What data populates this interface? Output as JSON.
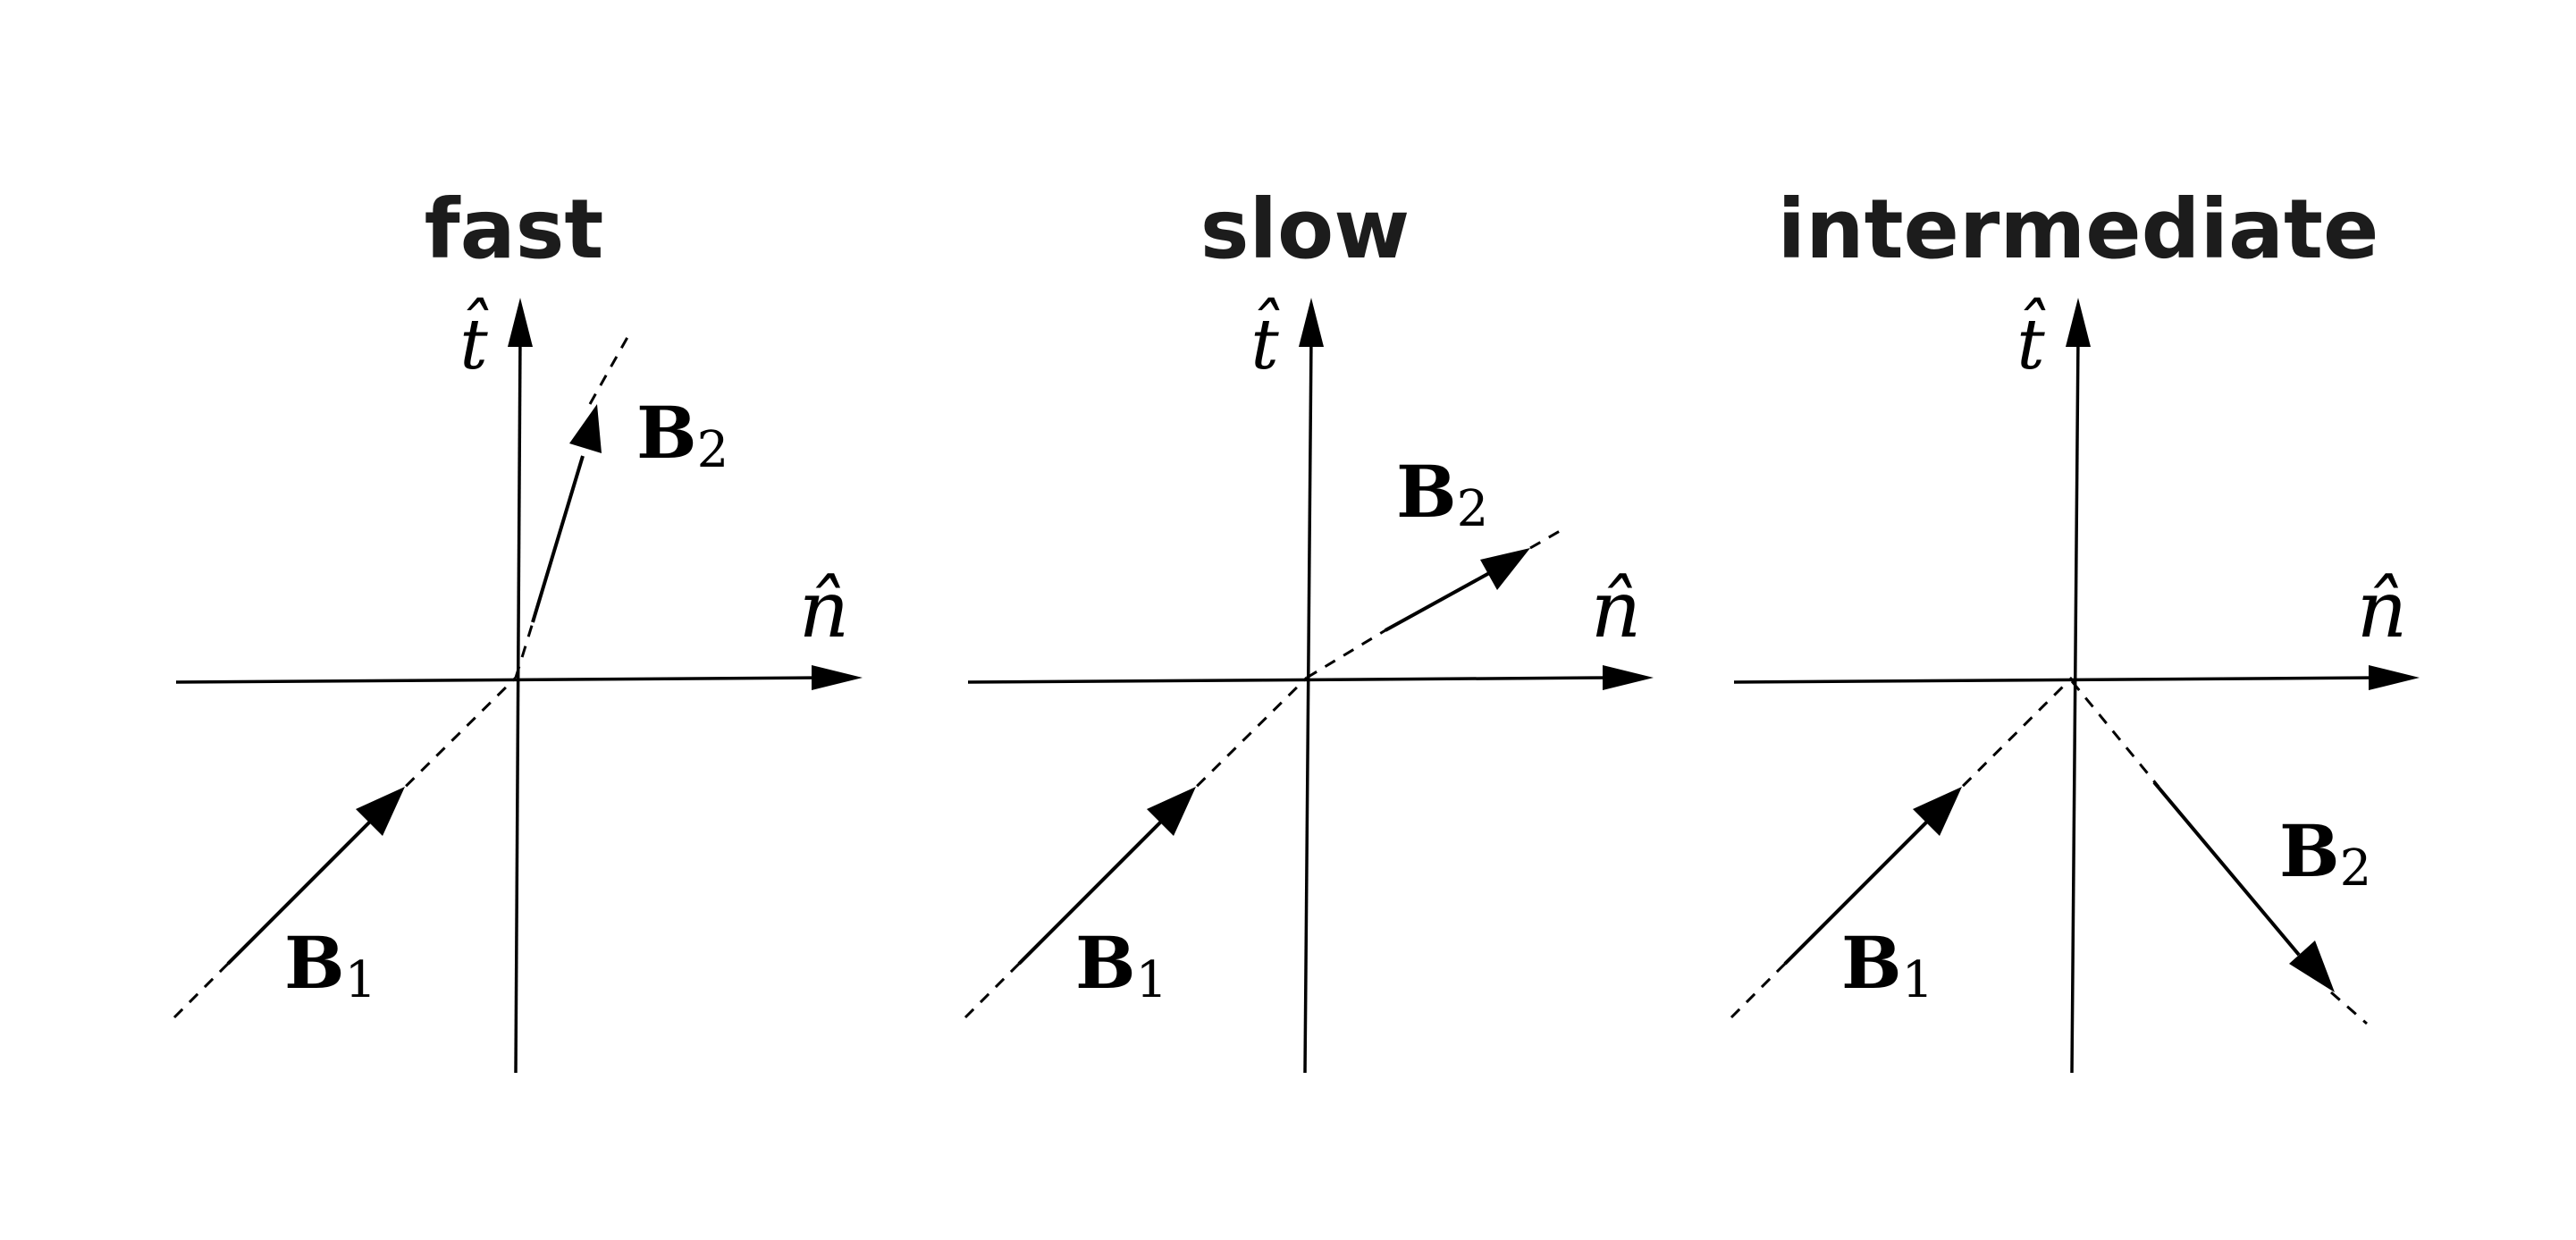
{
  "panels": [
    {
      "title": "fast",
      "axes": {
        "vertical": "t̂",
        "horizontal": "n̂"
      },
      "vectors": [
        {
          "symbol": "B",
          "subscript": "1"
        },
        {
          "symbol": "B",
          "subscript": "2"
        }
      ]
    },
    {
      "title": "slow",
      "axes": {
        "vertical": "t̂",
        "horizontal": "n̂"
      },
      "vectors": [
        {
          "symbol": "B",
          "subscript": "1"
        },
        {
          "symbol": "B",
          "subscript": "2"
        }
      ]
    },
    {
      "title": "intermediate",
      "axes": {
        "vertical": "t̂",
        "horizontal": "n̂"
      },
      "vectors": [
        {
          "symbol": "B",
          "subscript": "1"
        },
        {
          "symbol": "B",
          "subscript": "2"
        }
      ]
    }
  ]
}
